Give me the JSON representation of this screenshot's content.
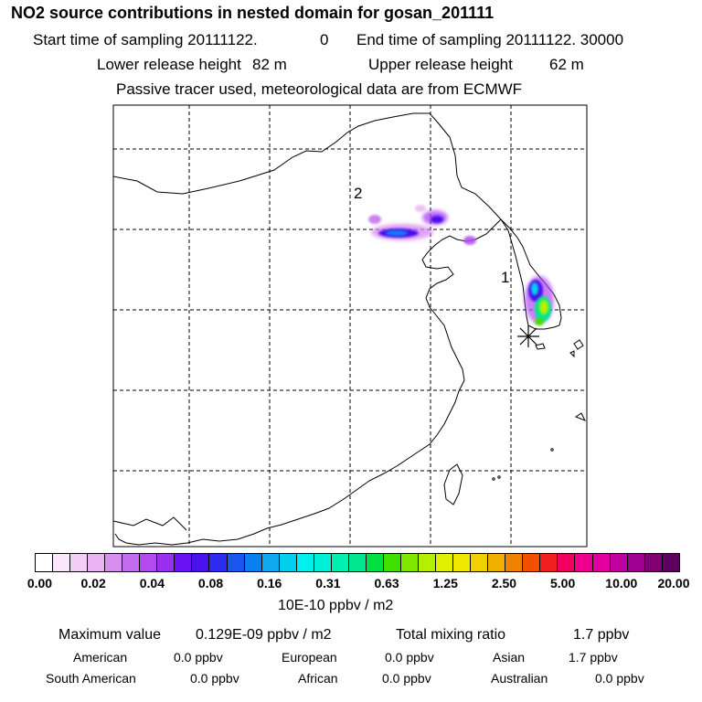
{
  "title": "NO2 source contributions in nested domain for gosan_201111",
  "header": {
    "start_label": "Start time of sampling 20111122.",
    "start_value": "0",
    "end_label": "End time of sampling 20111122. 30000",
    "lower_label": "Lower release height",
    "lower_value": "82 m",
    "upper_label": "Upper release height",
    "upper_value": "62 m",
    "tracer_note": "Passive tracer used, meteorological data are from ECMWF"
  },
  "map": {
    "markers": [
      "1",
      "2"
    ],
    "receptor_symbol": "asterisk"
  },
  "colorbar": {
    "colors": [
      "#ffffff",
      "#fbe6fb",
      "#f3cdf5",
      "#eab3f2",
      "#d88df0",
      "#c46cef",
      "#b14bf0",
      "#9a2ff0",
      "#6b10f0",
      "#4a10ee",
      "#2c2cf0",
      "#1a55f0",
      "#0a80f0",
      "#10a8f0",
      "#00cff0",
      "#00f0f0",
      "#00f0d8",
      "#00f0b0",
      "#00e890",
      "#00e040",
      "#40e000",
      "#80e800",
      "#b0f000",
      "#e0f000",
      "#f0e800",
      "#f0d000",
      "#f0b000",
      "#f08000",
      "#f05000",
      "#f02020",
      "#f00060",
      "#f00090",
      "#e000a0",
      "#c000a0",
      "#a00090",
      "#800070",
      "#600060"
    ],
    "ticks": [
      "0.00",
      "0.02",
      "0.04",
      "0.08",
      "0.16",
      "0.31",
      "0.63",
      "1.25",
      "2.50",
      "5.00",
      "10.00",
      "20.00"
    ],
    "units": "10E-10 ppbv / m2"
  },
  "stats": {
    "max_label": "Maximum value",
    "max_value": "0.129E-09 ppbv / m2",
    "total_label": "Total mixing ratio",
    "total_value": "1.7 ppbv"
  },
  "regions": [
    {
      "name": "American",
      "value": "0.0 ppbv"
    },
    {
      "name": "European",
      "value": "0.0 ppbv"
    },
    {
      "name": "Asian",
      "value": "1.7 ppbv"
    },
    {
      "name": "South American",
      "value": "0.0 ppbv"
    },
    {
      "name": "African",
      "value": "0.0 ppbv"
    },
    {
      "name": "Australian",
      "value": "0.0 ppbv"
    }
  ]
}
